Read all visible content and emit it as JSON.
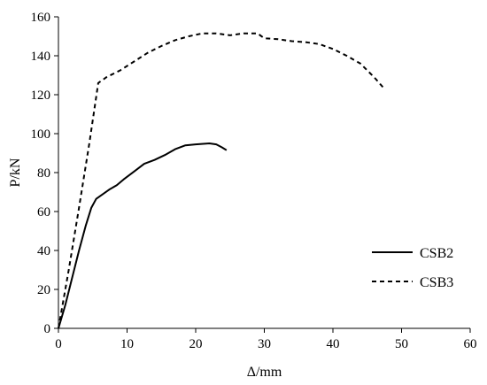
{
  "chart_data": {
    "type": "line",
    "title": "",
    "xlabel": "Δ/mm",
    "ylabel": "P/kN",
    "xlim": [
      0,
      60
    ],
    "ylim": [
      0,
      160
    ],
    "xticks": [
      0,
      10,
      20,
      30,
      40,
      50,
      60
    ],
    "yticks": [
      0,
      20,
      40,
      60,
      80,
      100,
      120,
      140,
      160
    ],
    "grid": false,
    "legend_position": "right",
    "series": [
      {
        "name": "CSB2",
        "line_style": "solid",
        "color": "#000000",
        "points": [
          [
            0,
            0
          ],
          [
            1,
            12
          ],
          [
            2,
            26
          ],
          [
            3,
            40
          ],
          [
            4,
            53
          ],
          [
            4.8,
            62
          ],
          [
            5.5,
            66.5
          ],
          [
            6.5,
            69
          ],
          [
            7.5,
            71.5
          ],
          [
            8.5,
            73.5
          ],
          [
            9.5,
            76.5
          ],
          [
            11,
            80.5
          ],
          [
            12.5,
            84.5
          ],
          [
            14,
            86.5
          ],
          [
            15.5,
            89
          ],
          [
            17,
            92
          ],
          [
            18.5,
            94
          ],
          [
            20,
            94.5
          ],
          [
            22,
            95
          ],
          [
            23,
            94.5
          ],
          [
            23.8,
            93
          ],
          [
            24.5,
            91.5
          ]
        ]
      },
      {
        "name": "CSB3",
        "line_style": "dashed",
        "color": "#000000",
        "points": [
          [
            0,
            0
          ],
          [
            1.5,
            30
          ],
          [
            3,
            62
          ],
          [
            4.5,
            95
          ],
          [
            5.8,
            126
          ],
          [
            7,
            129
          ],
          [
            9,
            132.5
          ],
          [
            11,
            137
          ],
          [
            13,
            141.5
          ],
          [
            15,
            145
          ],
          [
            17,
            148
          ],
          [
            19,
            150
          ],
          [
            21,
            151.5
          ],
          [
            23,
            151.5
          ],
          [
            25,
            150.5
          ],
          [
            27,
            151.5
          ],
          [
            29,
            151.5
          ],
          [
            30,
            149
          ],
          [
            32,
            148.5
          ],
          [
            34,
            147.5
          ],
          [
            36,
            147
          ],
          [
            38,
            146
          ],
          [
            40,
            143.5
          ],
          [
            42,
            140
          ],
          [
            44,
            136
          ],
          [
            46,
            129
          ],
          [
            47.5,
            123
          ]
        ]
      }
    ]
  }
}
